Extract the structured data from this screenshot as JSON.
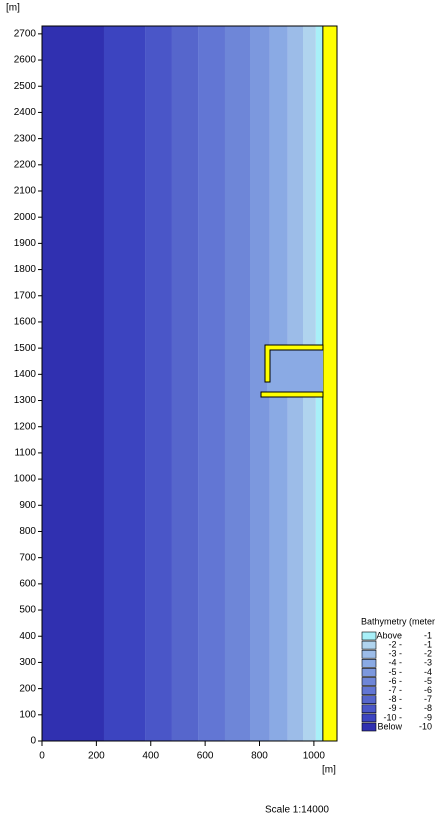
{
  "chart_data": {
    "type": "bathymetry-map",
    "y_unit": "[m]",
    "x_unit": "[m]",
    "scale_text": "Scale 1:14000",
    "legend_title": "Bathymetry (meter",
    "xlim": [
      0,
      1085
    ],
    "ylim": [
      0,
      2730
    ],
    "xticks": [
      0,
      200,
      400,
      600,
      800,
      1000
    ],
    "yticks": [
      0,
      100,
      200,
      300,
      400,
      500,
      600,
      700,
      800,
      900,
      1000,
      1100,
      1200,
      1300,
      1400,
      1500,
      1600,
      1700,
      1800,
      1900,
      2000,
      2100,
      2200,
      2300,
      2400,
      2500,
      2600,
      2700
    ],
    "land_color": "#ffff00",
    "land_x": [
      1033,
      1085
    ],
    "series": [
      {
        "name": "Above",
        "upper": "-1",
        "color": "#a8f0f8",
        "x": [
          1007,
          1033
        ]
      },
      {
        "name": "-2 -",
        "upper": "-1",
        "color": "#b0d4ee",
        "x": [
          960,
          1007
        ]
      },
      {
        "name": "-3 -",
        "upper": "-2",
        "color": "#9cbce8",
        "x": [
          904,
          960
        ]
      },
      {
        "name": "-4 -",
        "upper": "-3",
        "color": "#8aaae4",
        "x": [
          838,
          904
        ]
      },
      {
        "name": "-5 -",
        "upper": "-4",
        "color": "#7c98de",
        "x": [
          765,
          838
        ]
      },
      {
        "name": "-6 -",
        "upper": "-5",
        "color": "#6e86d8",
        "x": [
          673,
          765
        ]
      },
      {
        "name": "-7 -",
        "upper": "-6",
        "color": "#6276d4",
        "x": [
          574,
          673
        ]
      },
      {
        "name": "-8 -",
        "upper": "-7",
        "color": "#5666cc",
        "x": [
          478,
          574
        ]
      },
      {
        "name": "-9 -",
        "upper": "-8",
        "color": "#4a56c8",
        "x": [
          379,
          478
        ]
      },
      {
        "name": "-10 -",
        "upper": "-9",
        "color": "#3c44c0",
        "x": [
          228,
          379
        ]
      },
      {
        "name": "Below",
        "upper": "-10",
        "color": "#3030b0",
        "x": [
          0,
          228
        ]
      }
    ]
  }
}
